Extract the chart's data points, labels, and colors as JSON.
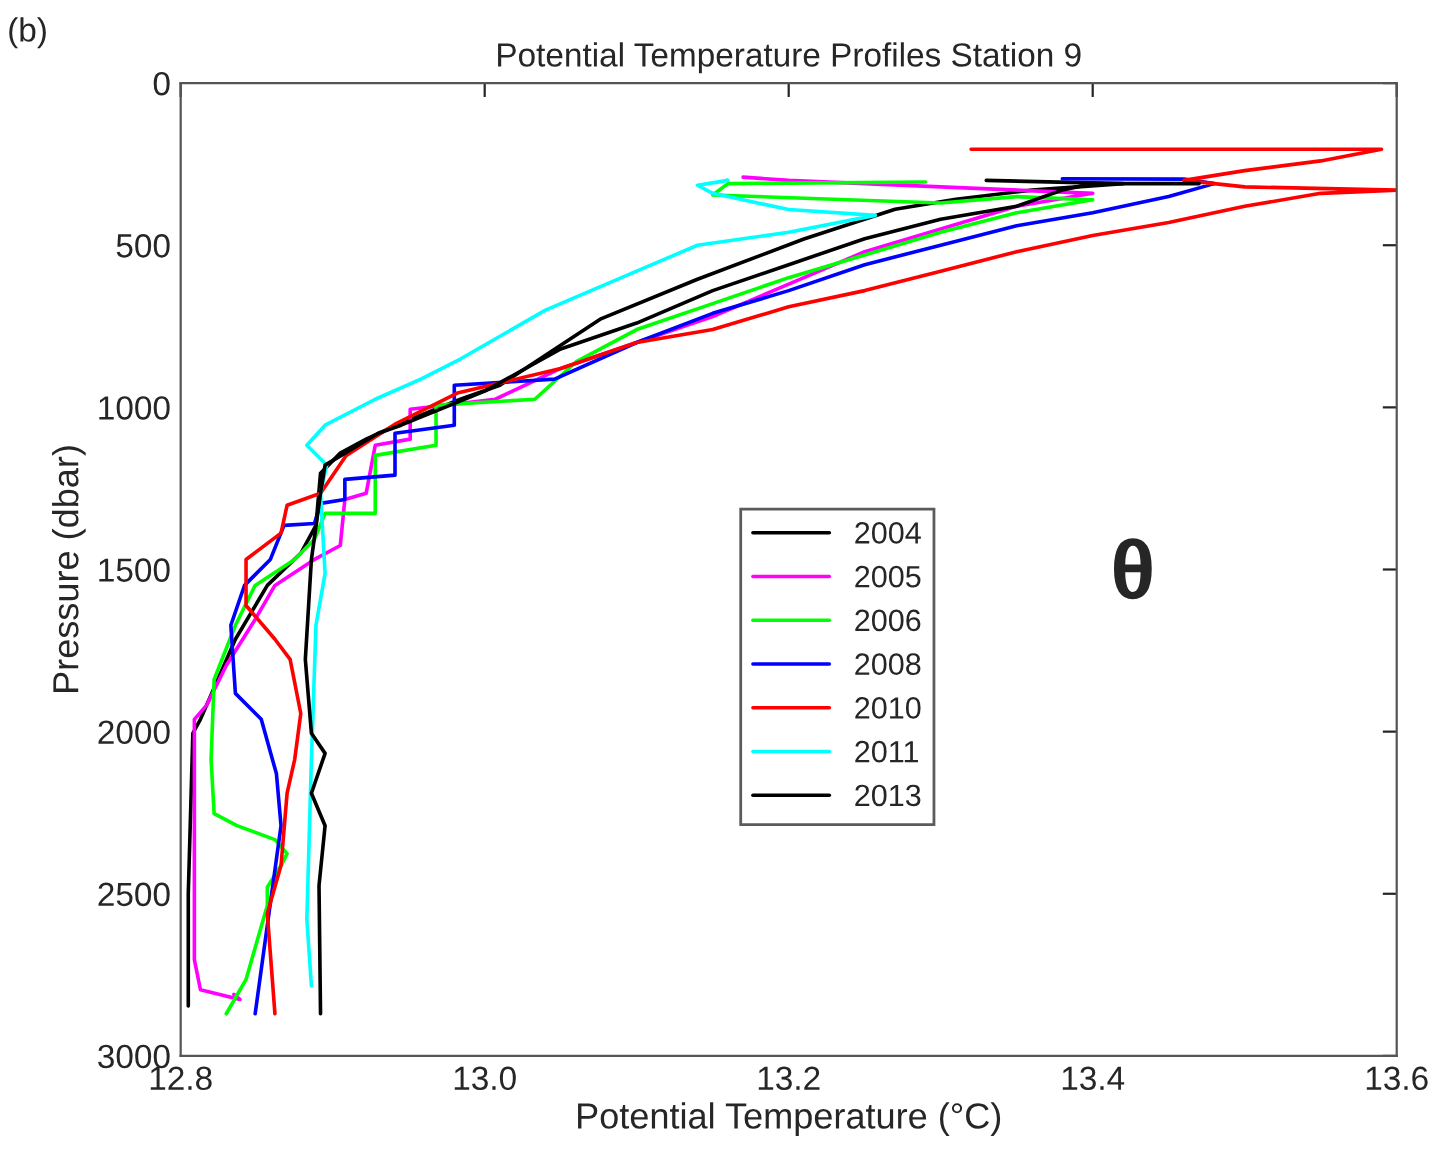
{
  "chart_data": {
    "type": "line",
    "title": "Potential Temperature Profiles Station 9",
    "xlabel": "Potential Temperature (°C)",
    "ylabel": "Pressure (dbar)",
    "annotations": [
      "(b)",
      "θ"
    ],
    "xlim": [
      12.8,
      13.6
    ],
    "xticks": [
      12.8,
      {
        "value": 13.0,
        "label": "13.0"
      },
      13.2,
      13.4,
      13.6
    ],
    "ylim": [
      3000,
      0
    ],
    "yticks": [
      0,
      500,
      1000,
      1500,
      2000,
      2500,
      3000
    ],
    "grid": false,
    "legend": "center",
    "marker": "none",
    "line_style": "solid",
    "series": [
      {
        "name": "2004",
        "color": "#000000",
        "x": [
          13.33,
          13.42,
          13.36,
          13.31,
          13.27,
          13.21,
          13.14,
          13.076,
          13.03,
          13.01,
          12.984,
          12.945,
          12.922,
          12.905,
          12.892,
          12.889,
          12.879,
          12.857,
          12.836,
          12.813,
          12.808,
          12.805,
          12.805
        ],
        "values": [
          300,
          310,
          330,
          358,
          389,
          481,
          605,
          728,
          870,
          932,
          975,
          1049,
          1098,
          1141,
          1203,
          1364,
          1450,
          1549,
          1715,
          1962,
          2005,
          2500,
          2846
        ]
      },
      {
        "name": "2005",
        "color": "#ff00ff",
        "x": [
          13.17,
          13.2,
          13.3,
          13.4,
          13.35,
          13.3,
          13.25,
          13.2,
          13.15,
          13.1,
          13.05,
          13.007,
          12.951,
          12.951,
          12.928,
          12.922,
          12.908,
          12.905,
          12.888,
          12.862,
          12.849,
          12.83,
          12.817,
          12.809,
          12.809,
          12.813,
          12.839,
          12.835
        ],
        "values": [
          290,
          300,
          320,
          340,
          380,
          450,
          520,
          620,
          720,
          800,
          880,
          975,
          1006,
          1098,
          1117,
          1265,
          1284,
          1426,
          1469,
          1549,
          1654,
          1796,
          1919,
          1962,
          2703,
          2796,
          2826,
          2810
        ]
      },
      {
        "name": "2006",
        "color": "#00ff00",
        "x": [
          13.29,
          13.16,
          13.15,
          13.3,
          13.35,
          13.4,
          13.35,
          13.3,
          13.25,
          13.2,
          13.15,
          13.1,
          13.06,
          13.033,
          12.968,
          12.968,
          12.928,
          12.928,
          12.895,
          12.888,
          12.875,
          12.849,
          12.836,
          12.822,
          12.82,
          12.822,
          12.837,
          12.862,
          12.87,
          12.866,
          12.857,
          12.857,
          12.843,
          12.83
        ],
        "values": [
          305,
          310,
          345,
          370,
          350,
          360,
          400,
          460,
          530,
          600,
          680,
          760,
          860,
          975,
          993,
          1117,
          1148,
          1327,
          1327,
          1407,
          1469,
          1549,
          1672,
          1839,
          2086,
          2253,
          2290,
          2333,
          2376,
          2413,
          2480,
          2536,
          2764,
          2870
        ]
      },
      {
        "name": "2008",
        "color": "#0000ff",
        "x": [
          13.38,
          13.46,
          13.48,
          13.45,
          13.4,
          13.35,
          13.3,
          13.25,
          13.2,
          13.15,
          13.1,
          13.046,
          12.98,
          12.98,
          12.941,
          12.941,
          12.908,
          12.908,
          12.892,
          12.888,
          12.868,
          12.859,
          12.842,
          12.833,
          12.836,
          12.853,
          12.863,
          12.866,
          12.849
        ],
        "values": [
          295,
          296,
          310,
          350,
          400,
          440,
          500,
          560,
          640,
          710,
          800,
          913,
          932,
          1055,
          1080,
          1209,
          1222,
          1284,
          1296,
          1358,
          1364,
          1469,
          1549,
          1672,
          1882,
          1962,
          2130,
          2290,
          2870
        ]
      },
      {
        "name": "2010",
        "color": "#ff0000",
        "x": [
          13.32,
          13.59,
          13.55,
          13.5,
          13.46,
          13.5,
          13.6,
          13.55,
          13.5,
          13.45,
          13.4,
          13.35,
          13.3,
          13.25,
          13.2,
          13.15,
          13.1,
          13.05,
          12.982,
          12.942,
          12.909,
          12.892,
          12.87,
          12.866,
          12.843,
          12.843,
          12.862,
          12.872,
          12.879,
          12.875,
          12.87,
          12.866,
          12.857,
          12.862
        ],
        "values": [
          204,
          204,
          240,
          270,
          300,
          320,
          330,
          340,
          380,
          430,
          470,
          520,
          580,
          640,
          690,
          760,
          800,
          880,
          956,
          1049,
          1148,
          1265,
          1302,
          1388,
          1469,
          1611,
          1715,
          1777,
          1944,
          2086,
          2190,
          2413,
          2561,
          2870
        ]
      },
      {
        "name": "2011",
        "color": "#00ffff",
        "x": [
          13.15,
          13.16,
          13.14,
          13.15,
          13.2,
          13.257,
          13.2,
          13.14,
          13.1,
          13.04,
          12.984,
          12.958,
          12.928,
          12.895,
          12.883,
          12.896,
          12.892,
          12.895,
          12.889,
          12.886,
          12.883,
          12.886
        ],
        "values": [
          308,
          300,
          315,
          340,
          390,
          408,
          460,
          500,
          580,
          700,
          851,
          913,
          975,
          1055,
          1117,
          1178,
          1265,
          1512,
          1672,
          2086,
          2579,
          2783
        ]
      },
      {
        "name": "2013",
        "color": "#000000",
        "x": [
          13.47,
          13.4,
          13.38,
          13.35,
          13.3,
          13.25,
          13.2,
          13.15,
          13.1,
          13.05,
          13.0,
          12.945,
          12.93,
          12.895,
          12.892,
          12.886,
          12.882,
          12.886,
          12.895,
          12.886,
          12.895,
          12.891,
          12.892
        ],
        "values": [
          310,
          310,
          330,
          380,
          420,
          480,
          560,
          640,
          740,
          820,
          950,
          1055,
          1080,
          1178,
          1265,
          1469,
          1777,
          2005,
          2067,
          2190,
          2290,
          2475,
          2870
        ]
      }
    ]
  }
}
